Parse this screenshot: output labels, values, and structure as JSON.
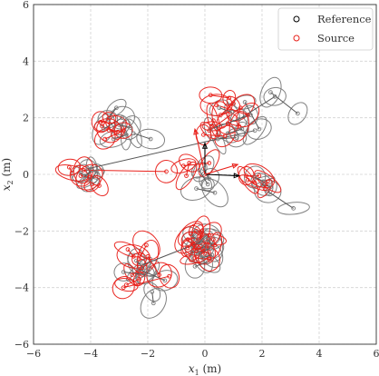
{
  "chart_data": {
    "type": "scatter",
    "xlabel": "x_1 (m)",
    "ylabel": "x_2 (m)",
    "xlim": [
      -6,
      6
    ],
    "ylim": [
      -6,
      6
    ],
    "xticks": [
      -6,
      -4,
      -2,
      0,
      2,
      4,
      6
    ],
    "yticks": [
      -6,
      -4,
      -2,
      0,
      2,
      4,
      6
    ],
    "grid": true,
    "legend_position": "top-right",
    "legend": [
      {
        "label": "Reference",
        "color": "#000000"
      },
      {
        "label": "Source",
        "color": "#e8201a"
      }
    ],
    "frame_axes": {
      "origin": [
        0,
        0
      ],
      "reference_tips": [
        [
          1.2,
          -0.05
        ],
        [
          0,
          1.1
        ]
      ],
      "source_tips": [
        [
          1.15,
          0.35
        ],
        [
          -0.35,
          1.6
        ]
      ]
    },
    "series": [
      {
        "name": "Reference",
        "color": "#000000",
        "points": [
          [
            -3.1,
            2.35
          ],
          [
            -3.4,
            1.95
          ],
          [
            -3.0,
            1.75
          ],
          [
            -2.6,
            1.65
          ],
          [
            -2.5,
            1.45
          ],
          [
            -1.9,
            1.25
          ],
          [
            -3.2,
            1.25
          ],
          [
            -2.75,
            1.4
          ],
          [
            -3.55,
            1.6
          ],
          [
            -2.9,
            2.0
          ],
          [
            0.5,
            2.35
          ],
          [
            0.95,
            2.2
          ],
          [
            1.4,
            2.55
          ],
          [
            1.9,
            1.6
          ],
          [
            1.3,
            1.6
          ],
          [
            0.8,
            1.45
          ],
          [
            0.45,
            1.25
          ],
          [
            1.1,
            1.3
          ],
          [
            0.2,
            1.6
          ],
          [
            1.6,
            2.1
          ],
          [
            1.2,
            1.95
          ],
          [
            2.45,
            2.75
          ],
          [
            2.3,
            2.9
          ],
          [
            3.25,
            2.15
          ],
          [
            1.75,
            1.55
          ],
          [
            -4.1,
            0.2
          ],
          [
            -4.35,
            0.05
          ],
          [
            -4.0,
            -0.15
          ],
          [
            -3.8,
            0.1
          ],
          [
            -4.0,
            -0.25
          ],
          [
            -3.95,
            0.15
          ],
          [
            -4.2,
            -0.05
          ],
          [
            -0.3,
            -0.5
          ],
          [
            0.35,
            -0.65
          ],
          [
            0.1,
            -0.35
          ],
          [
            -0.2,
            0.15
          ],
          [
            -0.05,
            0.2
          ],
          [
            0.15,
            -0.15
          ],
          [
            1.75,
            -0.1
          ],
          [
            2.05,
            -0.25
          ],
          [
            2.2,
            -0.6
          ],
          [
            3.1,
            -1.2
          ],
          [
            2.0,
            -0.35
          ],
          [
            2.3,
            -0.45
          ],
          [
            -0.45,
            -2.15
          ],
          [
            -0.3,
            -2.3
          ],
          [
            -0.2,
            -2.4
          ],
          [
            0.05,
            -2.15
          ],
          [
            0.1,
            -2.3
          ],
          [
            0.25,
            -2.5
          ],
          [
            0.0,
            -2.55
          ],
          [
            -0.45,
            -2.75
          ],
          [
            -0.1,
            -2.95
          ],
          [
            0.25,
            -2.85
          ],
          [
            0.1,
            -3.1
          ],
          [
            -0.35,
            -3.25
          ],
          [
            0.2,
            -2.6
          ],
          [
            -0.2,
            -2.8
          ],
          [
            -0.05,
            -2.35
          ],
          [
            -2.2,
            -3.2
          ],
          [
            -2.15,
            -3.3
          ],
          [
            -2.4,
            -3.05
          ],
          [
            -2.0,
            -3.45
          ],
          [
            -1.95,
            -3.35
          ],
          [
            -2.1,
            -3.55
          ],
          [
            -2.85,
            -3.45
          ],
          [
            -1.85,
            -4.15
          ],
          [
            -1.8,
            -4.55
          ],
          [
            -2.3,
            -3.35
          ],
          [
            -1.4,
            -3.75
          ]
        ]
      },
      {
        "name": "Source",
        "color": "#e8201a",
        "points": [
          [
            -3.35,
            2.0
          ],
          [
            -3.6,
            1.7
          ],
          [
            -3.35,
            1.55
          ],
          [
            -3.05,
            1.5
          ],
          [
            -2.85,
            1.55
          ],
          [
            -3.5,
            1.25
          ],
          [
            -3.1,
            1.8
          ],
          [
            -3.65,
            1.85
          ],
          [
            0.2,
            2.8
          ],
          [
            0.85,
            2.7
          ],
          [
            1.0,
            2.5
          ],
          [
            0.55,
            2.1
          ],
          [
            0.3,
            1.9
          ],
          [
            0.25,
            1.7
          ],
          [
            0.15,
            1.55
          ],
          [
            1.25,
            2.35
          ],
          [
            0.8,
            1.8
          ],
          [
            1.2,
            1.7
          ],
          [
            -0.05,
            1.4
          ],
          [
            0.7,
            1.35
          ],
          [
            1.5,
            2.1
          ],
          [
            0.4,
            2.45
          ],
          [
            -4.75,
            0.25
          ],
          [
            -4.65,
            0.05
          ],
          [
            -4.35,
            -0.05
          ],
          [
            -4.05,
            -0.1
          ],
          [
            -3.95,
            -0.35
          ],
          [
            -3.7,
            -0.4
          ],
          [
            -4.25,
            0.15
          ],
          [
            -1.35,
            0.1
          ],
          [
            -0.65,
            -0.05
          ],
          [
            -0.55,
            0.4
          ],
          [
            -0.75,
            0.3
          ],
          [
            0.15,
            0.4
          ],
          [
            1.5,
            -0.2
          ],
          [
            1.75,
            -0.3
          ],
          [
            2.1,
            -0.5
          ],
          [
            2.2,
            -0.25
          ],
          [
            1.9,
            -0.05
          ],
          [
            1.45,
            -0.05
          ],
          [
            -0.5,
            -2.1
          ],
          [
            -0.3,
            -2.0
          ],
          [
            -0.15,
            -2.05
          ],
          [
            0.15,
            -2.15
          ],
          [
            0.3,
            -2.3
          ],
          [
            0.35,
            -2.5
          ],
          [
            -0.6,
            -2.6
          ],
          [
            -0.4,
            -2.45
          ],
          [
            -0.2,
            -2.6
          ],
          [
            0.0,
            -2.8
          ],
          [
            -0.35,
            -2.95
          ],
          [
            0.15,
            -3.0
          ],
          [
            -0.6,
            -2.3
          ],
          [
            -0.3,
            -2.7
          ],
          [
            -2.7,
            -2.65
          ],
          [
            -2.5,
            -2.9
          ],
          [
            -2.3,
            -3.0
          ],
          [
            -2.05,
            -2.5
          ],
          [
            -2.2,
            -3.3
          ],
          [
            -2.55,
            -3.55
          ],
          [
            -2.75,
            -3.9
          ],
          [
            -2.3,
            -3.7
          ],
          [
            -2.85,
            -4.0
          ],
          [
            -1.25,
            -3.6
          ],
          [
            -1.6,
            -3.55
          ],
          [
            -2.0,
            -2.9
          ]
        ]
      }
    ]
  }
}
